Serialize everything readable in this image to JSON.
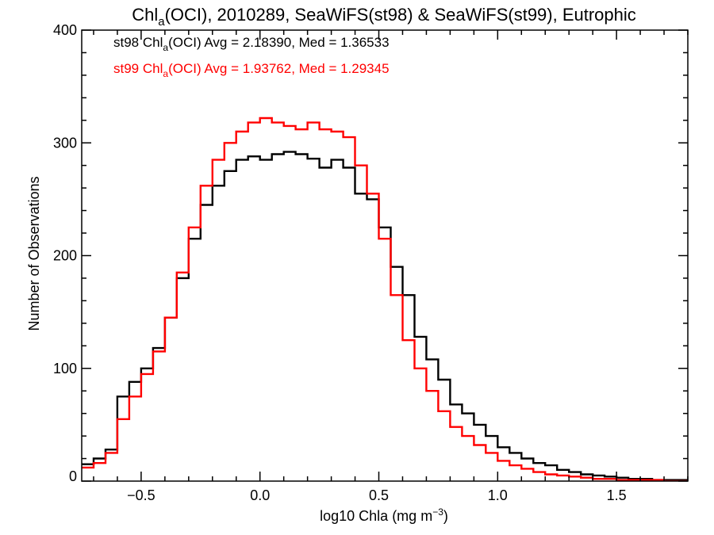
{
  "chart_data": {
    "type": "line",
    "title": {
      "prefix": "Chl",
      "sub": "a",
      "suffix": "(OCI), 2010289, SeaWiFS(st98) & SeaWiFS(st99), Eutrophic"
    },
    "xlabel": {
      "prefix": "log10 Chla (mg m",
      "sup": "−3",
      "suffix": ")"
    },
    "ylabel": "Number of Observations",
    "xlim": [
      -0.75,
      1.8
    ],
    "ylim": [
      0,
      400
    ],
    "xticks": [
      {
        "value": -0.5,
        "label": "−0.5"
      },
      {
        "value": 0.0,
        "label": "0.0"
      },
      {
        "value": 0.5,
        "label": "0.5"
      },
      {
        "value": 1.0,
        "label": "1.0"
      },
      {
        "value": 1.5,
        "label": "1.5"
      }
    ],
    "yticks": [
      {
        "value": 0,
        "label": "0"
      },
      {
        "value": 100,
        "label": "100"
      },
      {
        "value": 200,
        "label": "200"
      },
      {
        "value": 300,
        "label": "300"
      },
      {
        "value": 400,
        "label": "400"
      }
    ],
    "annotations": [
      {
        "color": "#000000",
        "pre": "st98 Chl",
        "sub": "a",
        "post": "(OCI) Avg = 2.18390, Med = 1.36533"
      },
      {
        "color": "#ff0000",
        "pre": "st99 Chl",
        "sub": "a",
        "post": "(OCI) Avg = 1.93762, Med = 1.29345"
      }
    ],
    "grid": false,
    "series": [
      {
        "color": "#000000",
        "step": "histogram",
        "x": [
          -0.75,
          -0.7,
          -0.65,
          -0.6,
          -0.55,
          -0.5,
          -0.45,
          -0.4,
          -0.35,
          -0.3,
          -0.25,
          -0.2,
          -0.15,
          -0.1,
          -0.05,
          0.0,
          0.05,
          0.1,
          0.15,
          0.2,
          0.25,
          0.3,
          0.35,
          0.4,
          0.45,
          0.5,
          0.55,
          0.6,
          0.65,
          0.7,
          0.75,
          0.8,
          0.85,
          0.9,
          0.95,
          1.0,
          1.05,
          1.1,
          1.15,
          1.2,
          1.25,
          1.3,
          1.35,
          1.4,
          1.45,
          1.5,
          1.55,
          1.6,
          1.65,
          1.7,
          1.75
        ],
        "y": [
          15,
          20,
          28,
          75,
          88,
          100,
          118,
          145,
          180,
          215,
          245,
          262,
          275,
          285,
          288,
          285,
          290,
          292,
          290,
          286,
          278,
          285,
          278,
          255,
          250,
          225,
          190,
          165,
          128,
          108,
          90,
          68,
          60,
          50,
          40,
          30,
          25,
          20,
          16,
          14,
          10,
          8,
          6,
          5,
          4,
          3,
          2,
          2,
          1,
          1,
          1
        ]
      },
      {
        "color": "#ff0000",
        "step": "histogram",
        "x": [
          -0.75,
          -0.7,
          -0.65,
          -0.6,
          -0.55,
          -0.5,
          -0.45,
          -0.4,
          -0.35,
          -0.3,
          -0.25,
          -0.2,
          -0.15,
          -0.1,
          -0.05,
          0.0,
          0.05,
          0.1,
          0.15,
          0.2,
          0.25,
          0.3,
          0.35,
          0.4,
          0.45,
          0.5,
          0.55,
          0.6,
          0.65,
          0.7,
          0.75,
          0.8,
          0.85,
          0.9,
          0.95,
          1.0,
          1.05,
          1.1,
          1.15,
          1.2,
          1.25,
          1.3,
          1.35,
          1.4,
          1.45,
          1.5,
          1.55,
          1.6,
          1.65,
          1.7,
          1.75
        ],
        "y": [
          12,
          16,
          25,
          55,
          75,
          95,
          115,
          145,
          185,
          225,
          262,
          285,
          300,
          310,
          318,
          322,
          318,
          315,
          312,
          318,
          312,
          310,
          305,
          280,
          255,
          215,
          165,
          125,
          100,
          80,
          62,
          48,
          40,
          32,
          25,
          18,
          14,
          11,
          8,
          6,
          5,
          4,
          3,
          2,
          2,
          1,
          1,
          1,
          1,
          0,
          0
        ]
      }
    ]
  }
}
